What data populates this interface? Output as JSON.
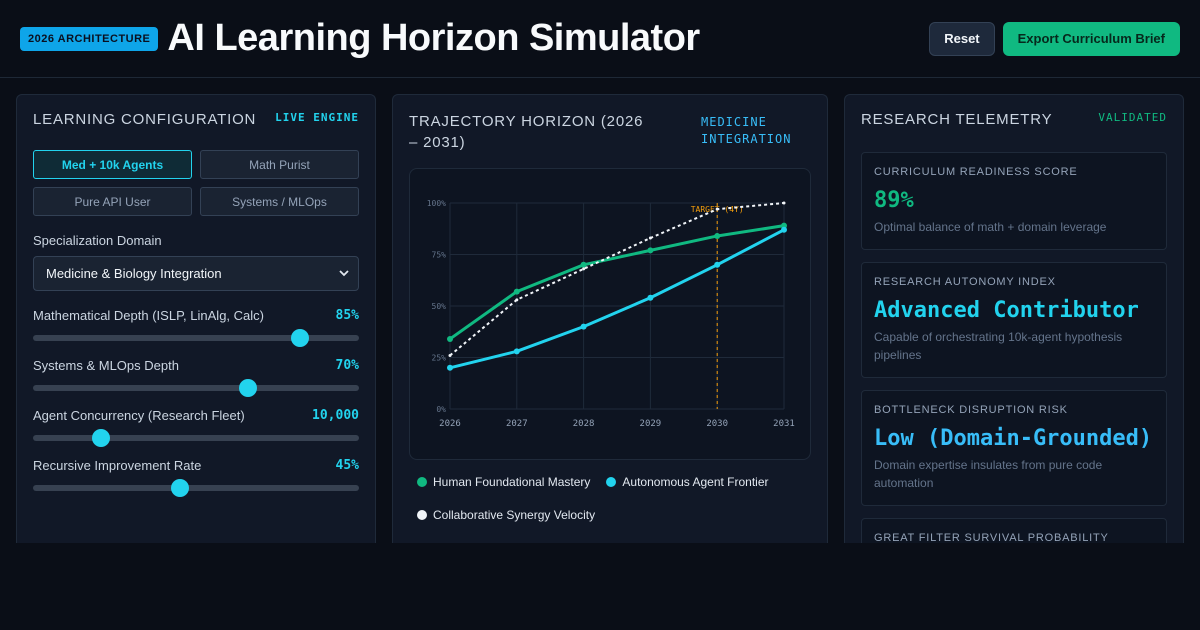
{
  "header": {
    "badge": "2026 ARCHITECTURE",
    "title": "AI Learning Horizon Simulator",
    "reset_label": "Reset",
    "export_label": "Export Curriculum Brief"
  },
  "config": {
    "title": "Learning Configuration",
    "tag": "LIVE ENGINE",
    "presets": [
      "Med + 10k Agents",
      "Math Purist",
      "Pure API User",
      "Systems / MLOps"
    ],
    "active_preset": "Med + 10k Agents",
    "domain_label": "Specialization Domain",
    "domain_value": "Medicine & Biology Integration",
    "sliders": [
      {
        "name": "Mathematical Depth (ISLP, LinAlg, Calc)",
        "display": "85%",
        "fraction": 0.82
      },
      {
        "name": "Systems & MLOps Depth",
        "display": "70%",
        "fraction": 0.66
      },
      {
        "name": "Agent Concurrency (Research Fleet)",
        "display": "10,000",
        "fraction": 0.21
      },
      {
        "name": "Recursive Improvement Rate",
        "display": "45%",
        "fraction": 0.45
      }
    ]
  },
  "trajectory": {
    "title": "Trajectory Horizon (2026 – 2031)",
    "tag": "MEDICINE INTEGRATION",
    "legend": [
      "Human Foundational Mastery",
      "Autonomous Agent Frontier",
      "Collaborative Synergy Velocity"
    ]
  },
  "chart_data": {
    "type": "line",
    "x": [
      "2026",
      "2027",
      "2028",
      "2029",
      "2030",
      "2031"
    ],
    "y_ticks": [
      "0%",
      "25%",
      "50%",
      "75%",
      "100%"
    ],
    "ylim": [
      0,
      100
    ],
    "series": [
      {
        "name": "Human Foundational Mastery",
        "color": "#10b981",
        "values": [
          34,
          57,
          70,
          77,
          84,
          89
        ]
      },
      {
        "name": "Autonomous Agent Frontier",
        "color": "#22d3ee",
        "values": [
          20,
          28,
          40,
          54,
          70,
          87
        ]
      },
      {
        "name": "Collaborative Synergy Velocity",
        "color": "#f1f5f9",
        "dashed": true,
        "values": [
          26,
          53,
          68,
          83,
          97,
          100
        ]
      }
    ],
    "target": {
      "label": "TARGET (4Y)",
      "x": "2030",
      "color": "#f59e0b"
    },
    "grid": true
  },
  "telemetry": {
    "title": "Research Telemetry",
    "tag": "VALIDATED",
    "cards": [
      {
        "label": "Curriculum Readiness Score",
        "value": "89%",
        "desc": "Optimal balance of math + domain leverage",
        "color": "#10b981"
      },
      {
        "label": "Research Autonomy Index",
        "value": "Advanced Contributor",
        "desc": "Capable of orchestrating 10k-agent hypothesis pipelines",
        "color": "#22d3ee"
      },
      {
        "label": "Bottleneck Disruption Risk",
        "value": "Low (Domain-Grounded)",
        "desc": "Domain expertise insulates from pure code automation",
        "color": "#38bdf8"
      },
      {
        "label": "Great Filter Survival Probability",
        "value": "",
        "desc": "",
        "color": "#e2e8f0"
      }
    ]
  },
  "colors": {
    "accent_cyan": "#22d3ee",
    "accent_green": "#10b981",
    "accent_blue": "#0ea5e9",
    "target_orange": "#f59e0b",
    "background": "#0a0e17"
  }
}
